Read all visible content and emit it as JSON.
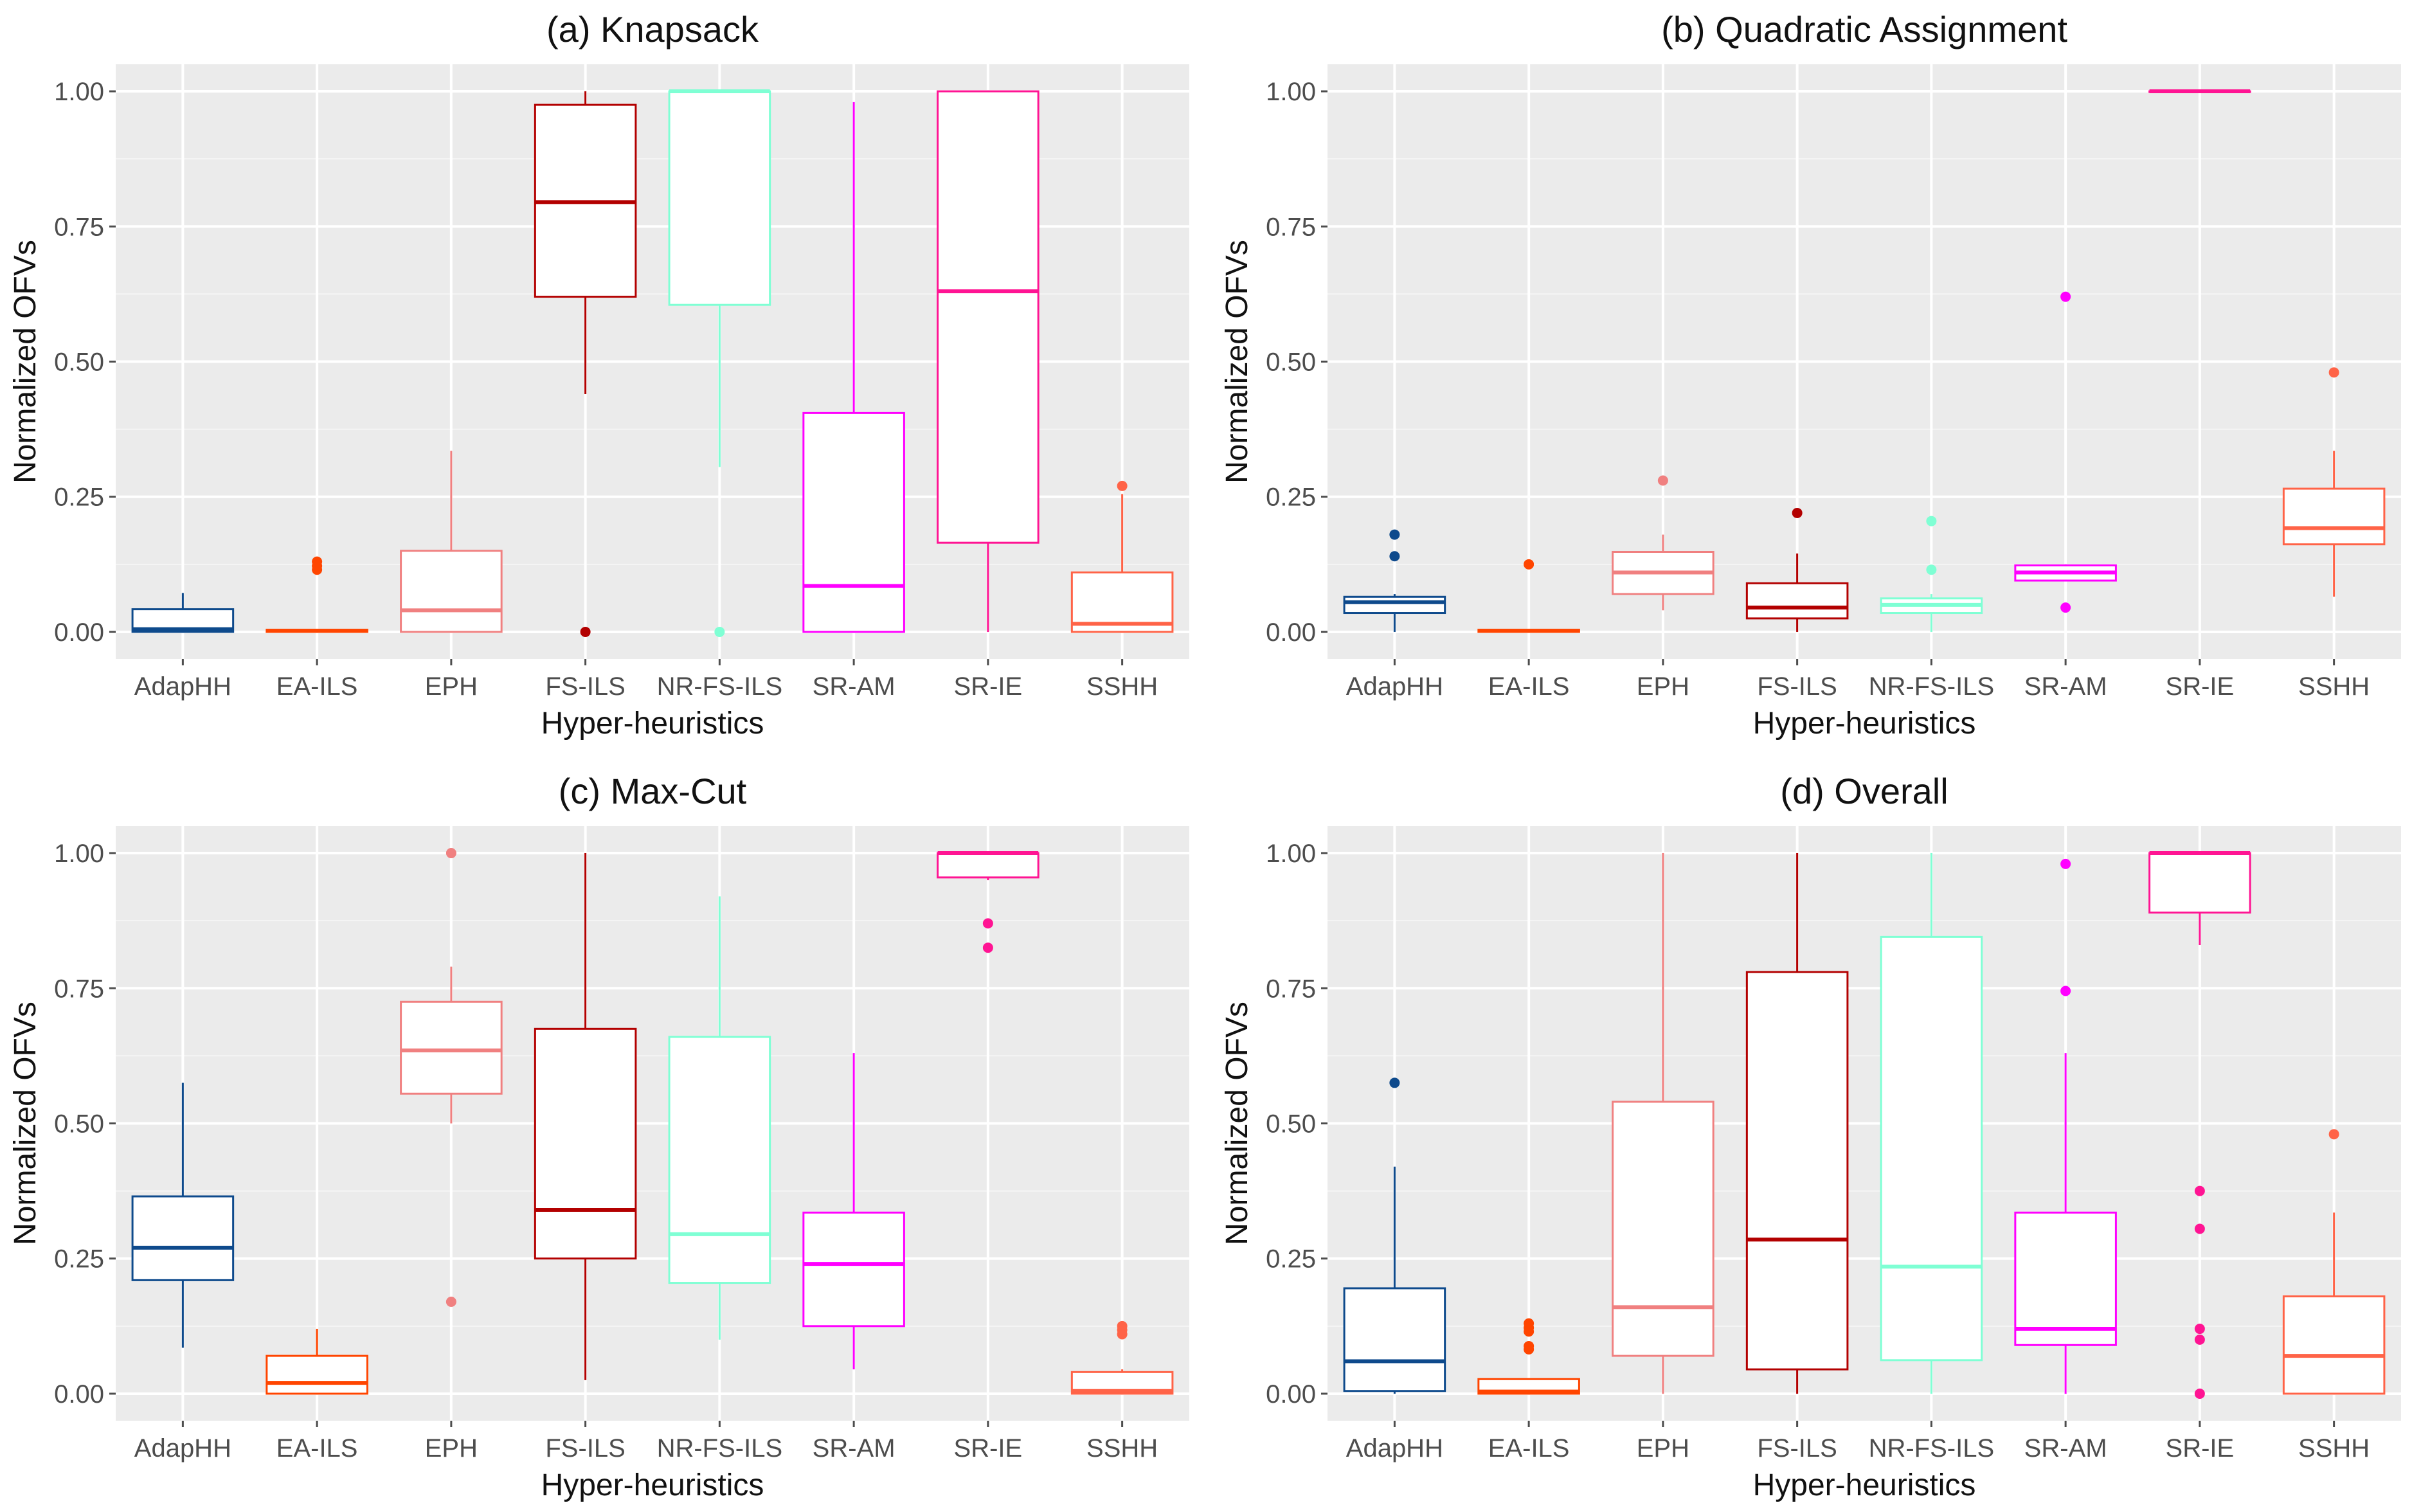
{
  "chart_data": [
    {
      "type": "box",
      "title": "(a) Knapsack",
      "xlabel": "Hyper-heuristics",
      "ylabel": "Normalized OFVs",
      "ylim": [
        -0.05,
        1.05
      ],
      "yticks": [
        "0.00",
        "0.25",
        "0.50",
        "0.75",
        "1.00"
      ],
      "categories": [
        "AdapHH",
        "EA-ILS",
        "EPH",
        "FS-ILS",
        "NR-FS-ILS",
        "SR-AM",
        "SR-IE",
        "SSHH"
      ],
      "boxes": [
        {
          "name": "AdapHH",
          "color": "#0e4a8c",
          "whisker_low": 0.0,
          "q1": 0.0,
          "median": 0.005,
          "q3": 0.042,
          "whisker_high": 0.072,
          "outliers": []
        },
        {
          "name": "EA-ILS",
          "color": "#ff4500",
          "whisker_low": 0.0,
          "q1": 0.0,
          "median": 0.002,
          "q3": 0.004,
          "whisker_high": 0.004,
          "outliers": [
            0.115,
            0.122,
            0.13
          ]
        },
        {
          "name": "EPH",
          "color": "#f08080",
          "whisker_low": 0.0,
          "q1": 0.0,
          "median": 0.04,
          "q3": 0.15,
          "whisker_high": 0.335,
          "outliers": []
        },
        {
          "name": "FS-ILS",
          "color": "#b30000",
          "whisker_low": 0.44,
          "q1": 0.62,
          "median": 0.795,
          "q3": 0.975,
          "whisker_high": 1.0,
          "outliers": [
            0.0
          ]
        },
        {
          "name": "NR-FS-ILS",
          "color": "#7fffd4",
          "whisker_low": 0.305,
          "q1": 0.605,
          "median": 1.0,
          "q3": 1.0,
          "whisker_high": 1.0,
          "outliers": [
            0.0
          ]
        },
        {
          "name": "SR-AM",
          "color": "#ff00ff",
          "whisker_low": 0.0,
          "q1": 0.0,
          "median": 0.085,
          "q3": 0.405,
          "whisker_high": 0.98,
          "outliers": []
        },
        {
          "name": "SR-IE",
          "color": "#ff1493",
          "whisker_low": 0.0,
          "q1": 0.165,
          "median": 0.63,
          "q3": 1.0,
          "whisker_high": 1.0,
          "outliers": []
        },
        {
          "name": "SSHH",
          "color": "#ff6347",
          "whisker_low": 0.0,
          "q1": 0.0,
          "median": 0.015,
          "q3": 0.11,
          "whisker_high": 0.255,
          "outliers": [
            0.27
          ]
        }
      ]
    },
    {
      "type": "box",
      "title": "(b) Quadratic Assignment",
      "xlabel": "Hyper-heuristics",
      "ylabel": "Normalized OFVs",
      "ylim": [
        -0.05,
        1.05
      ],
      "yticks": [
        "0.00",
        "0.25",
        "0.50",
        "0.75",
        "1.00"
      ],
      "categories": [
        "AdapHH",
        "EA-ILS",
        "EPH",
        "FS-ILS",
        "NR-FS-ILS",
        "SR-AM",
        "SR-IE",
        "SSHH"
      ],
      "boxes": [
        {
          "name": "AdapHH",
          "color": "#0e4a8c",
          "whisker_low": 0.0,
          "q1": 0.035,
          "median": 0.055,
          "q3": 0.065,
          "whisker_high": 0.07,
          "outliers": [
            0.14,
            0.18
          ]
        },
        {
          "name": "EA-ILS",
          "color": "#ff4500",
          "whisker_low": 0.0,
          "q1": 0.0,
          "median": 0.002,
          "q3": 0.004,
          "whisker_high": 0.004,
          "outliers": [
            0.125
          ]
        },
        {
          "name": "EPH",
          "color": "#f08080",
          "whisker_low": 0.04,
          "q1": 0.07,
          "median": 0.11,
          "q3": 0.148,
          "whisker_high": 0.18,
          "outliers": [
            0.28
          ]
        },
        {
          "name": "FS-ILS",
          "color": "#b30000",
          "whisker_low": 0.0,
          "q1": 0.025,
          "median": 0.045,
          "q3": 0.09,
          "whisker_high": 0.145,
          "outliers": [
            0.22
          ]
        },
        {
          "name": "NR-FS-ILS",
          "color": "#7fffd4",
          "whisker_low": 0.0,
          "q1": 0.035,
          "median": 0.05,
          "q3": 0.062,
          "whisker_high": 0.07,
          "outliers": [
            0.115,
            0.205
          ]
        },
        {
          "name": "SR-AM",
          "color": "#ff00ff",
          "whisker_low": 0.095,
          "q1": 0.095,
          "median": 0.11,
          "q3": 0.123,
          "whisker_high": 0.125,
          "outliers": [
            0.045,
            0.62
          ]
        },
        {
          "name": "SR-IE",
          "color": "#ff1493",
          "whisker_low": 1.0,
          "q1": 1.0,
          "median": 1.0,
          "q3": 1.0,
          "whisker_high": 1.0,
          "outliers": []
        },
        {
          "name": "SSHH",
          "color": "#ff6347",
          "whisker_low": 0.065,
          "q1": 0.162,
          "median": 0.192,
          "q3": 0.265,
          "whisker_high": 0.335,
          "outliers": [
            0.48
          ]
        }
      ]
    },
    {
      "type": "box",
      "title": "(c) Max-Cut",
      "xlabel": "Hyper-heuristics",
      "ylabel": "Normalized OFVs",
      "ylim": [
        -0.05,
        1.05
      ],
      "yticks": [
        "0.00",
        "0.25",
        "0.50",
        "0.75",
        "1.00"
      ],
      "categories": [
        "AdapHH",
        "EA-ILS",
        "EPH",
        "FS-ILS",
        "NR-FS-ILS",
        "SR-AM",
        "SR-IE",
        "SSHH"
      ],
      "boxes": [
        {
          "name": "AdapHH",
          "color": "#0e4a8c",
          "whisker_low": 0.085,
          "q1": 0.21,
          "median": 0.27,
          "q3": 0.365,
          "whisker_high": 0.575,
          "outliers": []
        },
        {
          "name": "EA-ILS",
          "color": "#ff4500",
          "whisker_low": 0.0,
          "q1": 0.0,
          "median": 0.02,
          "q3": 0.07,
          "whisker_high": 0.12,
          "outliers": []
        },
        {
          "name": "EPH",
          "color": "#f08080",
          "whisker_low": 0.5,
          "q1": 0.555,
          "median": 0.635,
          "q3": 0.725,
          "whisker_high": 0.79,
          "outliers": [
            0.17,
            1.0
          ]
        },
        {
          "name": "FS-ILS",
          "color": "#b30000",
          "whisker_low": 0.025,
          "q1": 0.25,
          "median": 0.34,
          "q3": 0.675,
          "whisker_high": 1.0,
          "outliers": []
        },
        {
          "name": "NR-FS-ILS",
          "color": "#7fffd4",
          "whisker_low": 0.1,
          "q1": 0.205,
          "median": 0.295,
          "q3": 0.66,
          "whisker_high": 0.92,
          "outliers": []
        },
        {
          "name": "SR-AM",
          "color": "#ff00ff",
          "whisker_low": 0.045,
          "q1": 0.125,
          "median": 0.24,
          "q3": 0.335,
          "whisker_high": 0.63,
          "outliers": []
        },
        {
          "name": "SR-IE",
          "color": "#ff1493",
          "whisker_low": 0.95,
          "q1": 0.955,
          "median": 1.0,
          "q3": 1.0,
          "whisker_high": 1.0,
          "outliers": [
            0.825,
            0.87
          ]
        },
        {
          "name": "SSHH",
          "color": "#ff6347",
          "whisker_low": 0.0,
          "q1": 0.0,
          "median": 0.005,
          "q3": 0.04,
          "whisker_high": 0.045,
          "outliers": [
            0.11,
            0.118,
            0.125
          ]
        }
      ]
    },
    {
      "type": "box",
      "title": "(d) Overall",
      "xlabel": "Hyper-heuristics",
      "ylabel": "Normalized OFVs",
      "ylim": [
        -0.05,
        1.05
      ],
      "yticks": [
        "0.00",
        "0.25",
        "0.50",
        "0.75",
        "1.00"
      ],
      "categories": [
        "AdapHH",
        "EA-ILS",
        "EPH",
        "FS-ILS",
        "NR-FS-ILS",
        "SR-AM",
        "SR-IE",
        "SSHH"
      ],
      "boxes": [
        {
          "name": "AdapHH",
          "color": "#0e4a8c",
          "whisker_low": 0.0,
          "q1": 0.005,
          "median": 0.06,
          "q3": 0.195,
          "whisker_high": 0.42,
          "outliers": [
            0.575
          ]
        },
        {
          "name": "EA-ILS",
          "color": "#ff4500",
          "whisker_low": 0.0,
          "q1": 0.0,
          "median": 0.004,
          "q3": 0.027,
          "whisker_high": 0.027,
          "outliers": [
            0.082,
            0.088,
            0.115,
            0.122,
            0.13
          ]
        },
        {
          "name": "EPH",
          "color": "#f08080",
          "whisker_low": 0.0,
          "q1": 0.07,
          "median": 0.16,
          "q3": 0.54,
          "whisker_high": 1.0,
          "outliers": []
        },
        {
          "name": "FS-ILS",
          "color": "#b30000",
          "whisker_low": 0.0,
          "q1": 0.045,
          "median": 0.285,
          "q3": 0.78,
          "whisker_high": 1.0,
          "outliers": []
        },
        {
          "name": "NR-FS-ILS",
          "color": "#7fffd4",
          "whisker_low": 0.0,
          "q1": 0.062,
          "median": 0.235,
          "q3": 0.845,
          "whisker_high": 1.0,
          "outliers": []
        },
        {
          "name": "SR-AM",
          "color": "#ff00ff",
          "whisker_low": 0.0,
          "q1": 0.09,
          "median": 0.12,
          "q3": 0.335,
          "whisker_high": 0.63,
          "outliers": [
            0.745,
            0.98
          ]
        },
        {
          "name": "SR-IE",
          "color": "#ff1493",
          "whisker_low": 0.83,
          "q1": 0.89,
          "median": 1.0,
          "q3": 1.0,
          "whisker_high": 1.0,
          "outliers": [
            0.0,
            0.1,
            0.12,
            0.305,
            0.375
          ]
        },
        {
          "name": "SSHH",
          "color": "#ff6347",
          "whisker_low": 0.0,
          "q1": 0.0,
          "median": 0.07,
          "q3": 0.18,
          "whisker_high": 0.335,
          "outliers": [
            0.48
          ]
        }
      ]
    }
  ]
}
